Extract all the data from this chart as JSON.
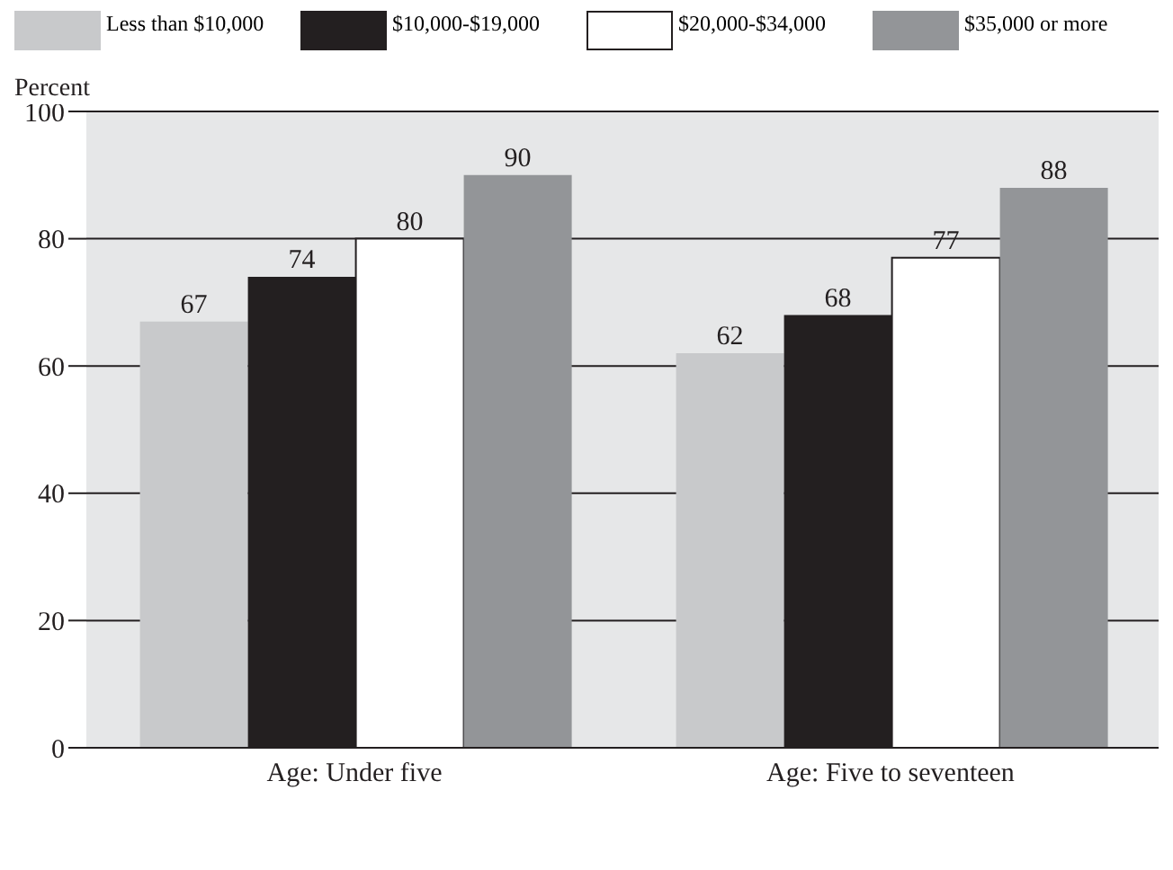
{
  "chart_data": {
    "type": "bar",
    "ylabel": "Percent",
    "categories": [
      "Age: Under five",
      "Age: Five to seventeen"
    ],
    "series": [
      {
        "name": "Less than $10,000",
        "color": "#c8c9cb",
        "values": [
          67,
          62
        ]
      },
      {
        "name": "$10,000-$19,000",
        "color": "#231f20",
        "values": [
          74,
          68
        ]
      },
      {
        "name": "$20,000-$34,000",
        "color": "#ffffff",
        "values": [
          80,
          77
        ]
      },
      {
        "name": "$35,000 or more",
        "color": "#939598",
        "values": [
          90,
          88
        ]
      }
    ],
    "ylim": [
      0,
      100
    ],
    "yticks": [
      0,
      20,
      40,
      60,
      80,
      100
    ],
    "grid": "y",
    "legend": "top",
    "data_labels": true
  }
}
